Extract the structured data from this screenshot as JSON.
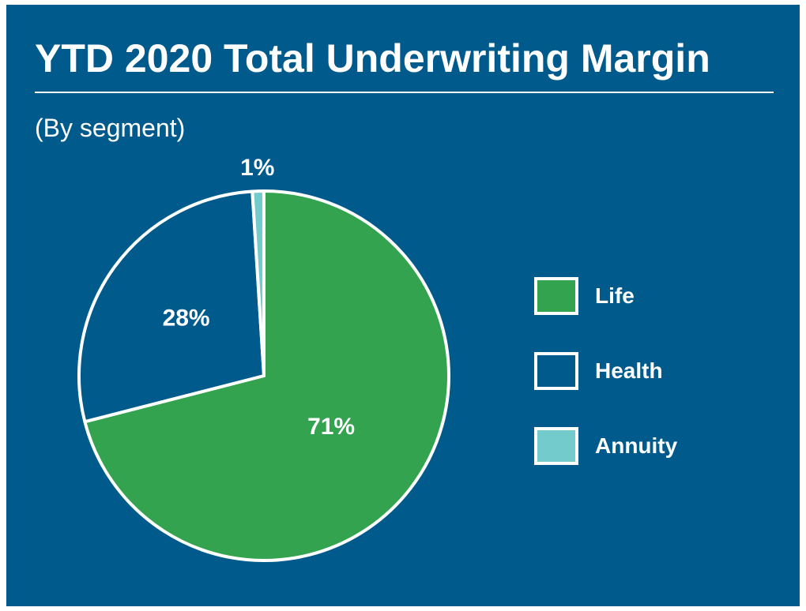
{
  "chart_data": {
    "type": "pie",
    "title": "YTD 2020 Total Underwriting Margin",
    "subtitle": "(By segment)",
    "slices": [
      {
        "name": "Life",
        "value": 71,
        "label": "71%",
        "color": "#33a350"
      },
      {
        "name": "Health",
        "value": 28,
        "label": "28%",
        "color": "#005a8b"
      },
      {
        "name": "Annuity",
        "value": 1,
        "label": "1%",
        "color": "#74cbcb"
      }
    ],
    "legend_position": "right",
    "background_color": "#005a8b",
    "outline_color": "#ffffff"
  },
  "legend": [
    {
      "label": "Life",
      "color": "#33a350"
    },
    {
      "label": "Health",
      "color": "#005a8b"
    },
    {
      "label": "Annuity",
      "color": "#74cbcb"
    }
  ]
}
